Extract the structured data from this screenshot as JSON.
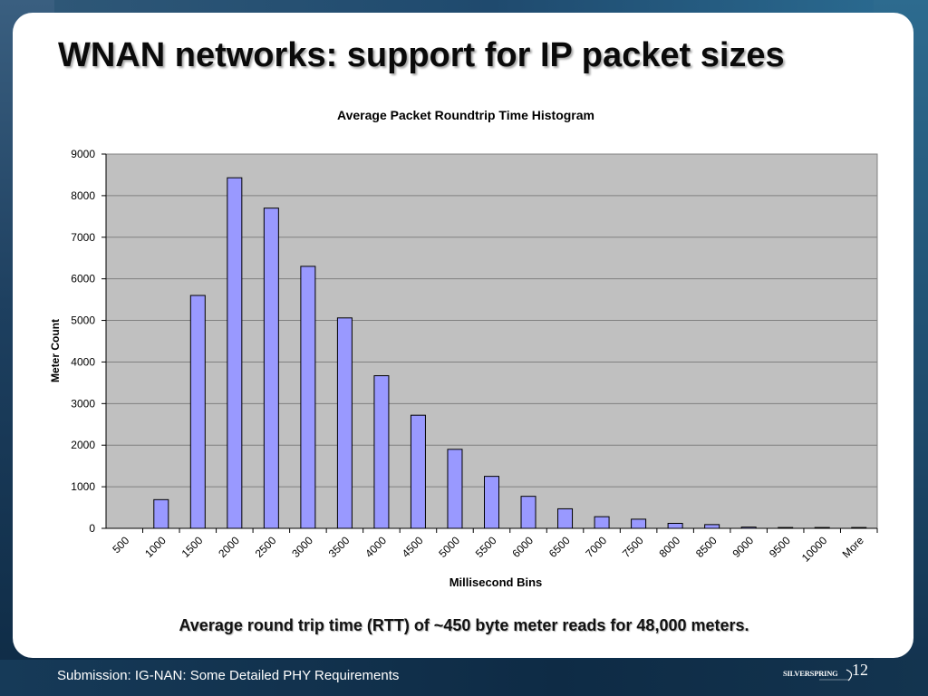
{
  "slide": {
    "title": "WNAN networks: support for IP packet sizes",
    "caption": "Average round trip time (RTT) of ~450 byte meter reads for 48,000 meters.",
    "footer": "Submission: IG-NAN: Some Detailed PHY Requirements",
    "page_number": "12",
    "logo_text": "SILVERSPRING"
  },
  "colors": {
    "bar_fill": "#9999ff",
    "bar_stroke": "#000000",
    "plot_background": "#c0c0c0",
    "gridline": "#808080"
  },
  "chart_data": {
    "type": "bar",
    "title": "Average Packet Roundtrip Time Histogram",
    "xlabel": "Millisecond Bins",
    "ylabel": "Meter Count",
    "categories": [
      "500",
      "1000",
      "1500",
      "2000",
      "2500",
      "3000",
      "3500",
      "4000",
      "4500",
      "5000",
      "5500",
      "6000",
      "6500",
      "7000",
      "7500",
      "8000",
      "8500",
      "9000",
      "9500",
      "10000",
      "More"
    ],
    "values": [
      0,
      690,
      5600,
      8430,
      7700,
      6300,
      5060,
      3670,
      2720,
      1900,
      1250,
      770,
      470,
      280,
      220,
      120,
      90,
      30,
      20,
      20,
      20
    ],
    "ylim": [
      0,
      9000
    ],
    "yticks": [
      0,
      1000,
      2000,
      3000,
      4000,
      5000,
      6000,
      7000,
      8000,
      9000
    ],
    "grid": true,
    "legend": "none"
  }
}
